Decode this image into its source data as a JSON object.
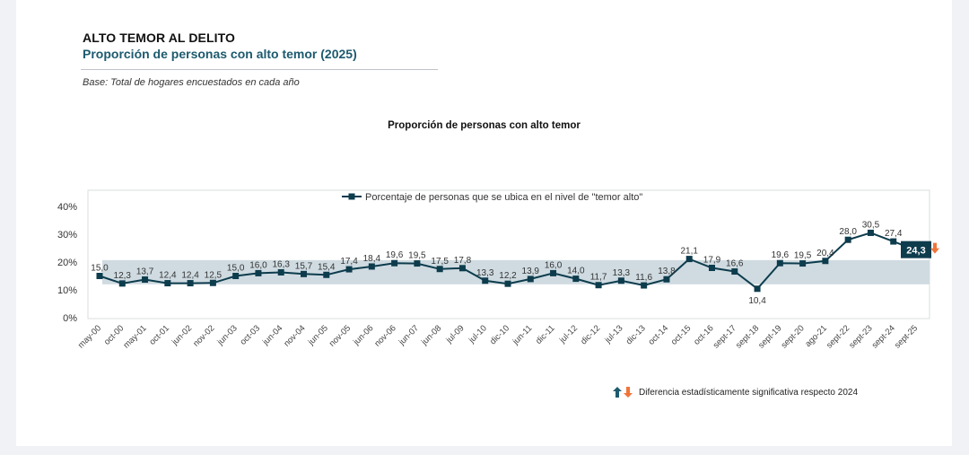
{
  "header": {
    "title": "ALTO TEMOR AL DELITO",
    "subtitle": "Proporción de personas con alto temor (2025)",
    "base_note": "Base: Total de hogares encuestados en cada año"
  },
  "footnote": {
    "text": "Diferencia estadísticamente significativa respecto 2024"
  },
  "colors": {
    "line": "#0d3c4d",
    "band": "#cfdbe1",
    "highlight_bg": "#0d3c4d",
    "arrow_up": "#1d5a6e",
    "arrow_down": "#f0743a"
  },
  "chart_data": {
    "type": "line",
    "title": "Proporción de personas con alto temor",
    "categories": [
      "may-00",
      "oct-00",
      "may-01",
      "oct-01",
      "jun-02",
      "nov-02",
      "jun-03",
      "oct-03",
      "jun-04",
      "nov-04",
      "jun-05",
      "nov-05",
      "jun-06",
      "nov-06",
      "jun-07",
      "jun-08",
      "jul-09",
      "jul-10",
      "dic-10",
      "jun-11",
      "dic-11",
      "jul-12",
      "dic-12",
      "jul-13",
      "dic-13",
      "oct-14",
      "oct-15",
      "oct-16",
      "sept-17",
      "sept-18",
      "sept-19",
      "sept-20",
      "ago-21",
      "sept-22",
      "sept-23",
      "sept-24",
      "sept-25"
    ],
    "series": [
      {
        "name": "Porcentaje de personas que se ubica en el nivel de \"temor alto\"",
        "values": [
          15.0,
          12.3,
          13.7,
          12.4,
          12.4,
          12.5,
          15.0,
          16.0,
          16.3,
          15.7,
          15.4,
          17.4,
          18.4,
          19.6,
          19.5,
          17.5,
          17.8,
          13.3,
          12.2,
          13.9,
          16.0,
          14.0,
          11.7,
          13.3,
          11.6,
          13.8,
          21.1,
          17.9,
          16.6,
          10.4,
          19.6,
          19.5,
          20.4,
          28.0,
          30.5,
          27.4,
          24.3
        ],
        "labels": [
          "15,0",
          "12,3",
          "13,7",
          "12,4",
          "12,4",
          "12,5",
          "15,0",
          "16,0",
          "16,3",
          "15,7",
          "15,4",
          "17,4",
          "18,4",
          "19,6",
          "19,5",
          "17,5",
          "17,8",
          "13,3",
          "12,2",
          "13,9",
          "16,0",
          "14,0",
          "11,7",
          "13,3",
          "11,6",
          "13,8",
          "21,1",
          "17,9",
          "16,6",
          "10,4",
          "19,6",
          "19,5",
          "20,4",
          "28,0",
          "30,5",
          "27,4",
          "24,3"
        ]
      }
    ],
    "yticks": [
      "0%",
      "10%",
      "20%",
      "30%",
      "40%"
    ],
    "ylim": [
      0,
      40
    ],
    "band": [
      12,
      20.7
    ],
    "highlight_last": true,
    "legend_position": "top-center",
    "grid": false
  }
}
